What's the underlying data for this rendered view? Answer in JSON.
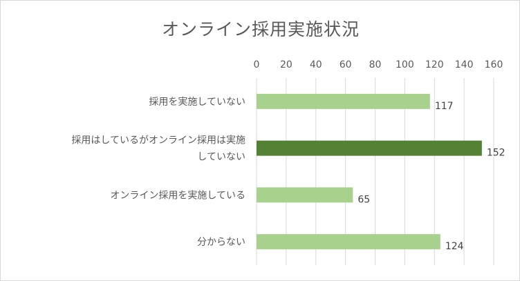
{
  "chart_data": {
    "type": "bar",
    "orientation": "horizontal",
    "title": "オンライン採用実施状況",
    "categories": [
      [
        "採用を実施していない"
      ],
      [
        "採用はしているがオンライン採用は実施",
        "していない"
      ],
      [
        "オンライン採用を実施している"
      ],
      [
        "分からない"
      ]
    ],
    "values": [
      117,
      152,
      65,
      124
    ],
    "highlight_index": 1,
    "xlim": [
      0,
      160
    ],
    "ticks": [
      0,
      20,
      40,
      60,
      80,
      100,
      120,
      140,
      160
    ],
    "axis_position": "top",
    "grid": true,
    "legend": "none",
    "colors": {
      "bar": "#a9d18e",
      "highlight": "#548235",
      "grid": "#d9d9d9",
      "text": "#595959"
    }
  }
}
